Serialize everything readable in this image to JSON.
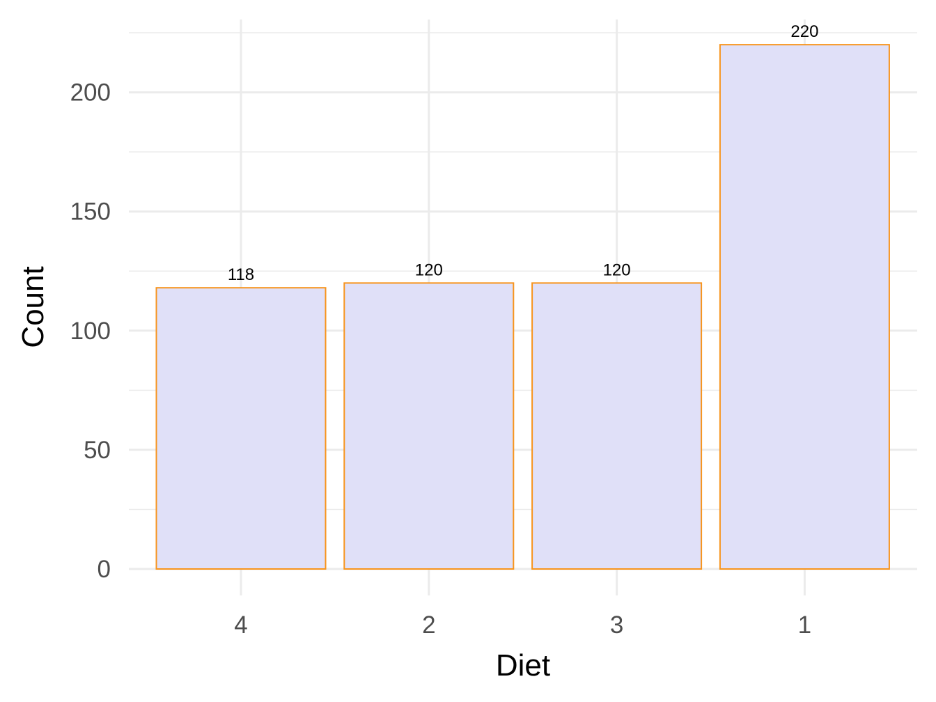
{
  "chart_data": {
    "type": "bar",
    "categories": [
      "4",
      "2",
      "3",
      "1"
    ],
    "values": [
      118,
      120,
      120,
      220
    ],
    "data_labels": [
      "118",
      "120",
      "120",
      "220"
    ],
    "title": "",
    "xlabel": "Diet",
    "ylabel": "Count",
    "ylim": [
      0,
      230
    ],
    "yticks": [
      0,
      50,
      100,
      150,
      200
    ],
    "ytick_labels": [
      "0",
      "50",
      "100",
      "150",
      "200"
    ],
    "grid": true,
    "colors": {
      "bar_fill": "#e0e0f8",
      "bar_stroke": "#f7941d",
      "grid": "#ebebeb",
      "tick_text": "#4d4d4d",
      "axis_title": "#000000"
    }
  }
}
